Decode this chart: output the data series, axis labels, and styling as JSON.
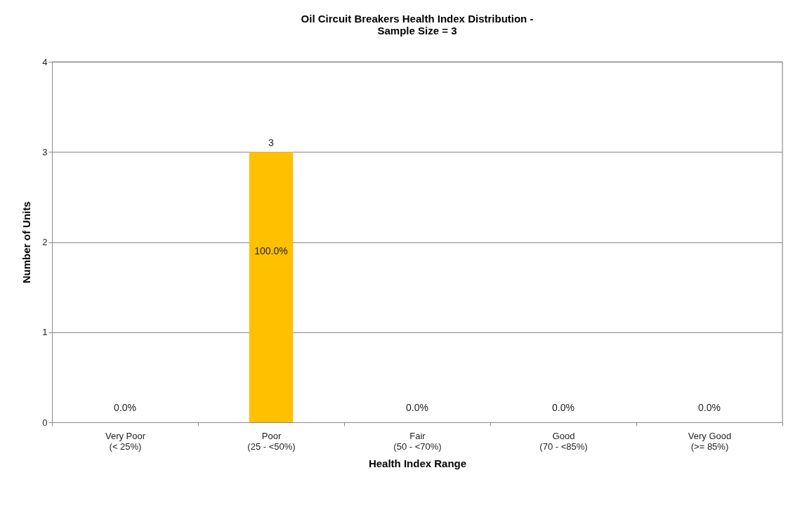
{
  "chart_data": {
    "type": "bar",
    "title": [
      "Oil Circuit Breakers Health Index Distribution -",
      "Sample Size = 3"
    ],
    "xlabel": "Health Index Range",
    "ylabel": "Number of Units",
    "categories": [
      "Very Poor\n(< 25%)",
      "Poor\n(25 - <50%)",
      "Fair\n(50 - <70%)",
      "Good\n(70 - <85%)",
      "Very Good\n(>= 85%)"
    ],
    "values": [
      0,
      3,
      0,
      0,
      0
    ],
    "value_labels": [
      null,
      "3",
      null,
      null,
      null
    ],
    "color": "#ffc000",
    "ylim": [
      0,
      4
    ],
    "yticks": [
      0,
      1,
      2,
      3,
      4
    ],
    "grid": "y",
    "annotations": [
      "0.0%",
      "100.0%",
      "0.0%",
      "0.0%",
      "0.0%"
    ]
  }
}
